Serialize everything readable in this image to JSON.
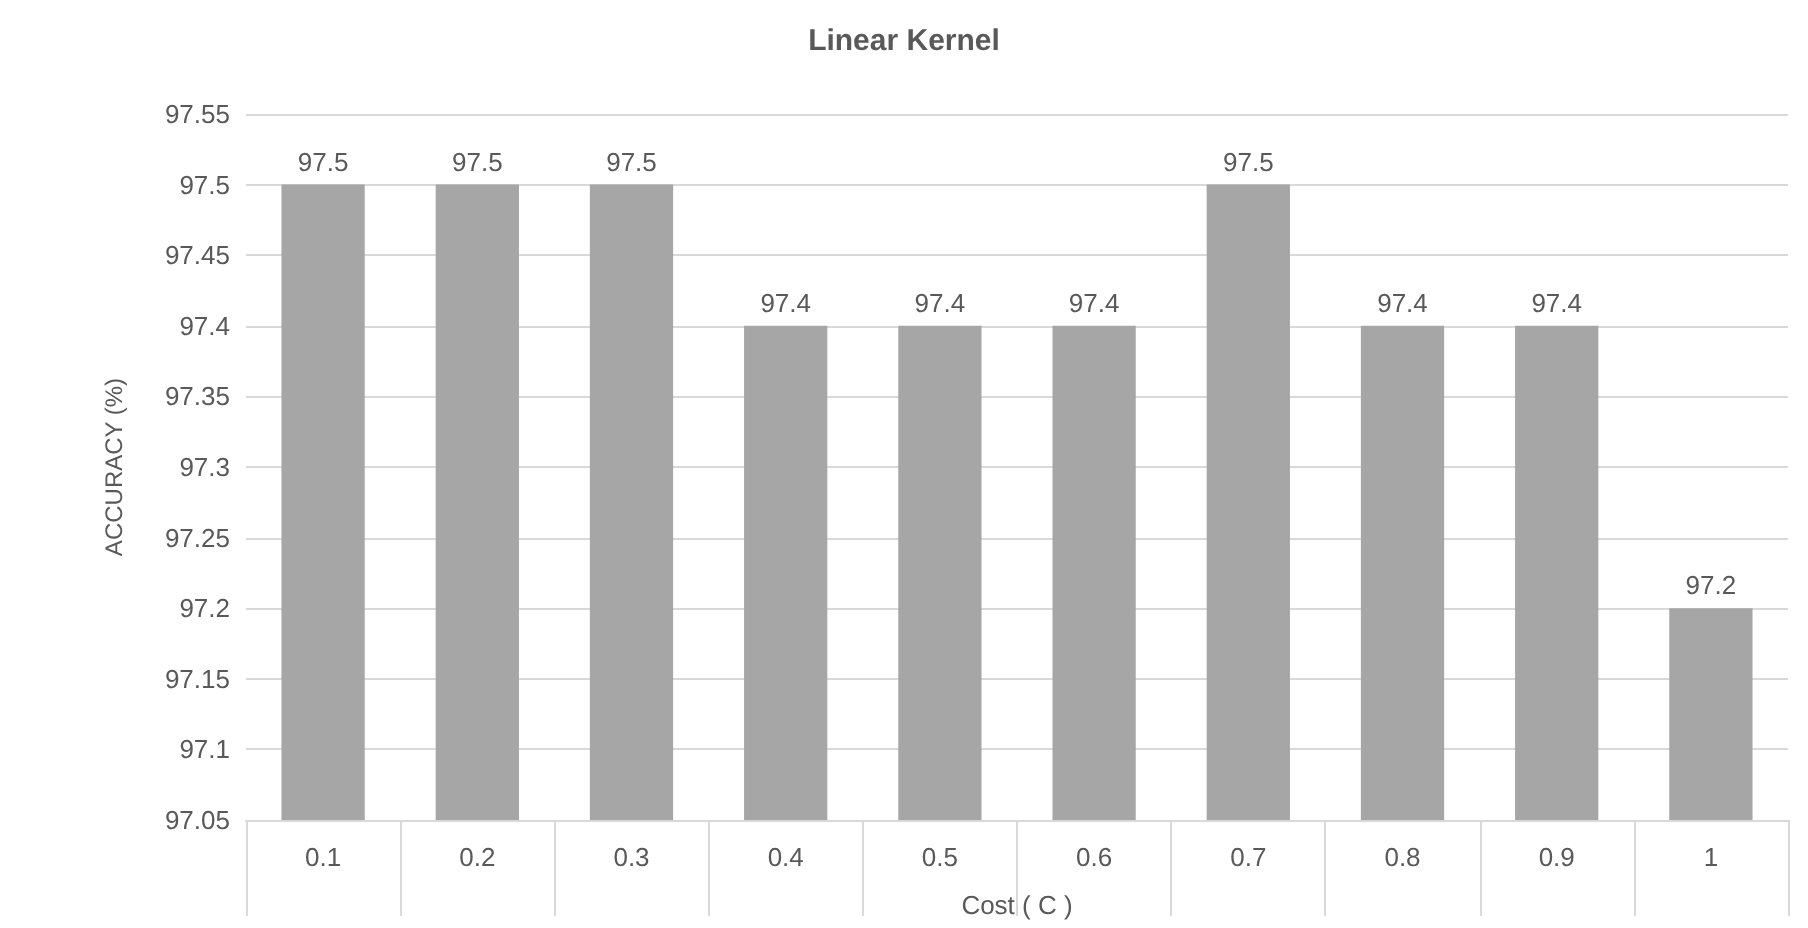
{
  "chart_data": {
    "type": "bar",
    "title": "Linear Kernel",
    "xlabel": "Cost ( C )",
    "ylabel": "ACCURACY (%)",
    "categories": [
      "0.1",
      "0.2",
      "0.3",
      "0.4",
      "0.5",
      "0.6",
      "0.7",
      "0.8",
      "0.9",
      "1"
    ],
    "values": [
      97.5,
      97.5,
      97.5,
      97.4,
      97.4,
      97.4,
      97.5,
      97.4,
      97.4,
      97.2
    ],
    "color": "#a6a6a6",
    "data_labels": true,
    "grid": "y",
    "ylim": [
      97.05,
      97.55
    ],
    "yticks": [
      97.05,
      97.1,
      97.15,
      97.2,
      97.25,
      97.3,
      97.35,
      97.4,
      97.45,
      97.5,
      97.55
    ]
  }
}
